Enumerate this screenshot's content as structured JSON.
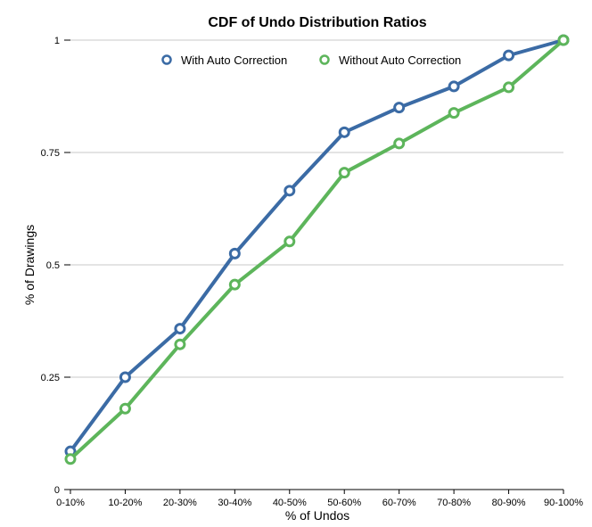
{
  "chart_data": {
    "type": "line",
    "title": "CDF of Undo Distribution Ratios",
    "xlabel": "% of Undos",
    "ylabel": "% of Drawings",
    "categories": [
      "0-10%",
      "10-20%",
      "20-30%",
      "30-40%",
      "40-50%",
      "50-60%",
      "60-70%",
      "70-80%",
      "80-90%",
      "90-100%"
    ],
    "ylim": [
      0,
      1
    ],
    "yticks": [
      0,
      0.25,
      0.5,
      0.75,
      1
    ],
    "ytick_labels": [
      "0",
      "0.25",
      "0.5",
      "0.75",
      "1"
    ],
    "grid": true,
    "legend_position": "top",
    "series": [
      {
        "name": "With Auto Correction",
        "color": "#3b6ba5",
        "values": [
          0.085,
          0.25,
          0.358,
          0.525,
          0.665,
          0.795,
          0.85,
          0.897,
          0.966,
          1.0
        ]
      },
      {
        "name": "Without Auto Correction",
        "color": "#5db55b",
        "values": [
          0.068,
          0.18,
          0.323,
          0.456,
          0.552,
          0.705,
          0.77,
          0.838,
          0.895,
          1.0
        ]
      }
    ]
  }
}
